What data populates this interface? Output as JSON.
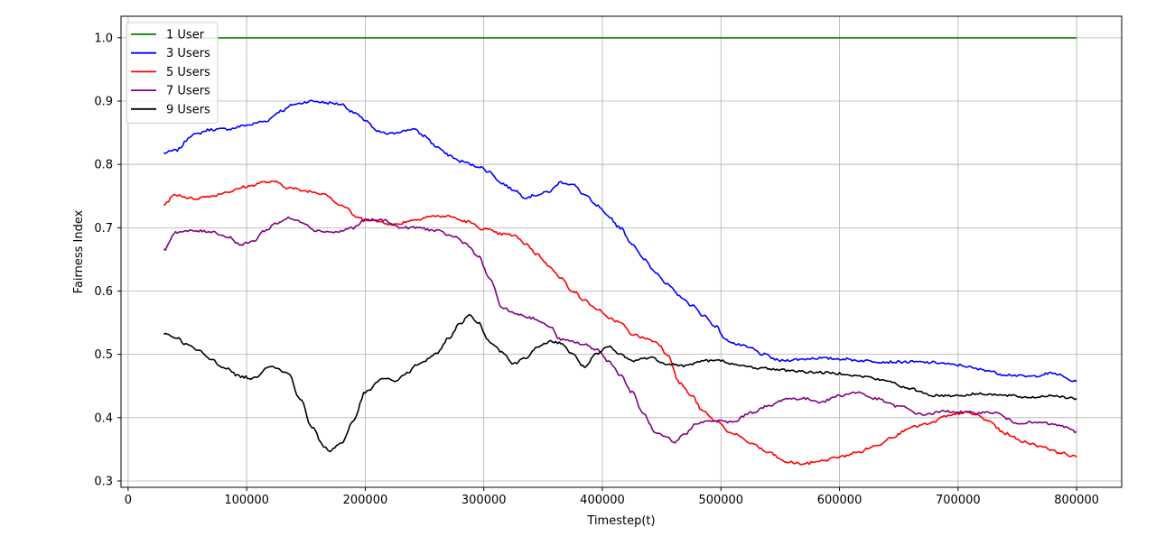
{
  "chart_data": {
    "type": "line",
    "xlabel": "Timestep(t)",
    "ylabel": "Fairness Index",
    "xlim": [
      -6000,
      838000
    ],
    "ylim": [
      0.29,
      1.034
    ],
    "xticks": [
      0,
      100000,
      200000,
      300000,
      400000,
      500000,
      600000,
      700000,
      800000
    ],
    "xtick_labels": [
      "0",
      "100000",
      "200000",
      "300000",
      "400000",
      "500000",
      "600000",
      "700000",
      "800000"
    ],
    "yticks": [
      0.3,
      0.4,
      0.5,
      0.6,
      0.7,
      0.8,
      0.9,
      1.0
    ],
    "ytick_labels": [
      "0.3",
      "0.4",
      "0.5",
      "0.6",
      "0.7",
      "0.8",
      "0.9",
      "1.0"
    ],
    "grid": true,
    "legend_position": "top-left",
    "series": [
      {
        "name": "1 User",
        "color": "#008000",
        "x": [
          30000,
          800000
        ],
        "y": [
          1.0,
          1.0
        ]
      },
      {
        "name": "3 Users",
        "color": "#0000ff",
        "x": [
          30000,
          40000,
          55000,
          70000,
          85000,
          100000,
          115000,
          130000,
          140000,
          155000,
          170000,
          180000,
          190000,
          200000,
          210000,
          220000,
          230000,
          240000,
          250000,
          260000,
          270000,
          280000,
          295000,
          305000,
          315000,
          325000,
          335000,
          345000,
          355000,
          365000,
          375000,
          385000,
          395000,
          405000,
          415000,
          425000,
          435000,
          445000,
          455000,
          465000,
          475000,
          485000,
          495000,
          505000,
          515000,
          525000,
          535000,
          550000,
          565000,
          580000,
          600000,
          620000,
          640000,
          660000,
          680000,
          700000,
          720000,
          740000,
          760000,
          780000,
          800000
        ],
        "y": [
          0.818,
          0.822,
          0.847,
          0.855,
          0.856,
          0.862,
          0.868,
          0.885,
          0.895,
          0.9,
          0.897,
          0.895,
          0.882,
          0.87,
          0.852,
          0.848,
          0.852,
          0.856,
          0.845,
          0.828,
          0.815,
          0.805,
          0.797,
          0.788,
          0.77,
          0.76,
          0.748,
          0.752,
          0.757,
          0.772,
          0.768,
          0.752,
          0.735,
          0.718,
          0.7,
          0.675,
          0.65,
          0.63,
          0.61,
          0.592,
          0.578,
          0.562,
          0.545,
          0.522,
          0.515,
          0.51,
          0.5,
          0.49,
          0.492,
          0.494,
          0.493,
          0.49,
          0.488,
          0.488,
          0.487,
          0.483,
          0.476,
          0.468,
          0.465,
          0.47,
          0.457
        ]
      },
      {
        "name": "5 Users",
        "color": "#ff0000",
        "x": [
          30000,
          40000,
          55000,
          70000,
          85000,
          100000,
          115000,
          125000,
          135000,
          150000,
          165000,
          180000,
          195000,
          210000,
          225000,
          240000,
          255000,
          270000,
          285000,
          300000,
          315000,
          325000,
          335000,
          345000,
          355000,
          365000,
          375000,
          385000,
          395000,
          405000,
          415000,
          425000,
          435000,
          445000,
          455000,
          465000,
          475000,
          485000,
          495000,
          510000,
          525000,
          540000,
          555000,
          570000,
          585000,
          600000,
          615000,
          630000,
          645000,
          660000,
          675000,
          690000,
          705000,
          715000,
          725000,
          740000,
          755000,
          770000,
          785000,
          800000
        ],
        "y": [
          0.737,
          0.752,
          0.746,
          0.75,
          0.757,
          0.765,
          0.772,
          0.772,
          0.763,
          0.758,
          0.754,
          0.735,
          0.715,
          0.71,
          0.705,
          0.712,
          0.718,
          0.718,
          0.71,
          0.698,
          0.69,
          0.688,
          0.675,
          0.658,
          0.64,
          0.62,
          0.6,
          0.585,
          0.572,
          0.558,
          0.55,
          0.532,
          0.526,
          0.52,
          0.5,
          0.455,
          0.435,
          0.41,
          0.395,
          0.375,
          0.36,
          0.345,
          0.33,
          0.327,
          0.332,
          0.338,
          0.345,
          0.355,
          0.37,
          0.385,
          0.39,
          0.402,
          0.408,
          0.405,
          0.395,
          0.375,
          0.362,
          0.355,
          0.345,
          0.338
        ]
      },
      {
        "name": "7 Users",
        "color": "#800080",
        "x": [
          30000,
          40000,
          55000,
          70000,
          85000,
          95000,
          105000,
          115000,
          125000,
          135000,
          145000,
          160000,
          175000,
          190000,
          200000,
          215000,
          230000,
          245000,
          260000,
          275000,
          285000,
          295000,
          305000,
          315000,
          325000,
          340000,
          355000,
          365000,
          375000,
          385000,
          395000,
          405000,
          415000,
          425000,
          435000,
          445000,
          455000,
          460000,
          470000,
          480000,
          495000,
          510000,
          525000,
          540000,
          555000,
          570000,
          585000,
          600000,
          615000,
          630000,
          650000,
          670000,
          690000,
          710000,
          730000,
          750000,
          770000,
          785000,
          800000
        ],
        "y": [
          0.665,
          0.693,
          0.695,
          0.694,
          0.685,
          0.673,
          0.678,
          0.695,
          0.707,
          0.715,
          0.71,
          0.695,
          0.693,
          0.7,
          0.712,
          0.712,
          0.7,
          0.7,
          0.695,
          0.686,
          0.675,
          0.655,
          0.62,
          0.575,
          0.565,
          0.558,
          0.545,
          0.523,
          0.52,
          0.515,
          0.508,
          0.49,
          0.468,
          0.44,
          0.405,
          0.375,
          0.368,
          0.36,
          0.375,
          0.392,
          0.395,
          0.393,
          0.408,
          0.418,
          0.43,
          0.43,
          0.425,
          0.435,
          0.44,
          0.43,
          0.418,
          0.405,
          0.41,
          0.408,
          0.408,
          0.392,
          0.392,
          0.388,
          0.378
        ]
      },
      {
        "name": "9 Users",
        "color": "#000000",
        "x": [
          30000,
          40000,
          50000,
          60000,
          70000,
          80000,
          95000,
          105000,
          120000,
          135000,
          145000,
          155000,
          165000,
          170000,
          180000,
          190000,
          200000,
          215000,
          225000,
          235000,
          245000,
          260000,
          270000,
          280000,
          287000,
          295000,
          305000,
          315000,
          325000,
          335000,
          345000,
          355000,
          365000,
          375000,
          385000,
          395000,
          405000,
          415000,
          425000,
          440000,
          455000,
          470000,
          485000,
          500000,
          515000,
          535000,
          555000,
          575000,
          600000,
          620000,
          640000,
          660000,
          680000,
          700000,
          720000,
          740000,
          760000,
          780000,
          800000
        ],
        "y": [
          0.533,
          0.527,
          0.515,
          0.505,
          0.492,
          0.48,
          0.465,
          0.462,
          0.482,
          0.47,
          0.43,
          0.385,
          0.355,
          0.348,
          0.36,
          0.395,
          0.44,
          0.462,
          0.458,
          0.47,
          0.485,
          0.5,
          0.525,
          0.548,
          0.562,
          0.55,
          0.52,
          0.505,
          0.485,
          0.495,
          0.51,
          0.52,
          0.518,
          0.5,
          0.48,
          0.5,
          0.512,
          0.5,
          0.49,
          0.495,
          0.485,
          0.482,
          0.49,
          0.49,
          0.482,
          0.478,
          0.475,
          0.472,
          0.47,
          0.465,
          0.458,
          0.445,
          0.435,
          0.435,
          0.438,
          0.435,
          0.432,
          0.435,
          0.43
        ]
      }
    ]
  }
}
